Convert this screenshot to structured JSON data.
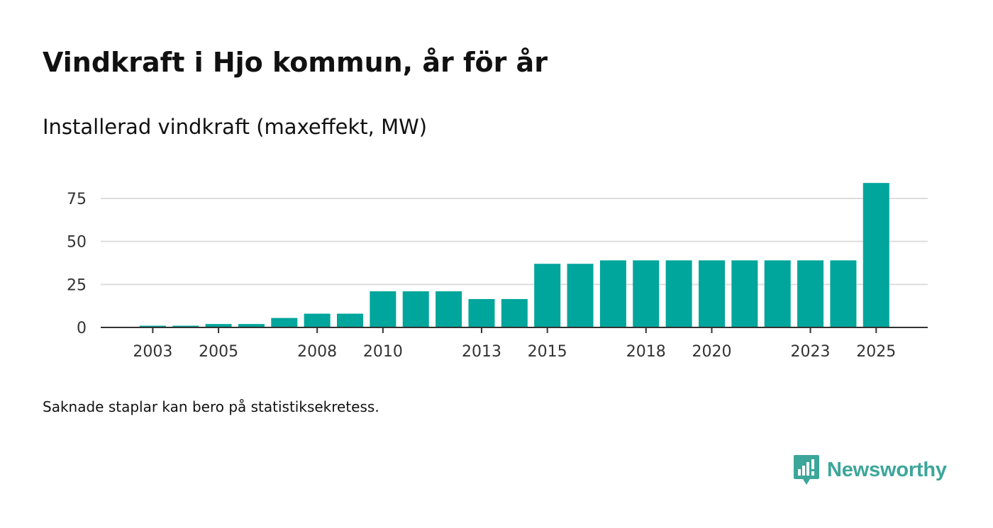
{
  "header": {
    "title": "Vindkraft i Hjo kommun, år för år",
    "subtitle": "Installerad vindkraft (maxeffekt, MW)"
  },
  "footer": {
    "note": "Saknade staplar kan bero på statistiksekretess.",
    "brand": "Newsworthy"
  },
  "colors": {
    "bar": "#00a59b",
    "grid": "#dddddd",
    "axis": "#333333",
    "brand": "#3ca69a"
  },
  "chart_data": {
    "type": "bar",
    "title": "Vindkraft i Hjo kommun, år för år",
    "subtitle": "Installerad vindkraft (maxeffekt, MW)",
    "xlabel": "",
    "ylabel": "",
    "ylim": [
      0,
      85
    ],
    "yticks": [
      0,
      25,
      50,
      75
    ],
    "xtick_labels": [
      2003,
      2005,
      2008,
      2010,
      2013,
      2015,
      2018,
      2020,
      2023,
      2025
    ],
    "categories": [
      2002,
      2003,
      2004,
      2005,
      2006,
      2007,
      2008,
      2009,
      2010,
      2011,
      2012,
      2013,
      2014,
      2015,
      2016,
      2017,
      2018,
      2019,
      2020,
      2021,
      2022,
      2023,
      2024,
      2025
    ],
    "values": [
      null,
      1,
      1,
      2,
      2,
      5.5,
      8,
      8,
      21,
      21,
      21,
      16.5,
      16.5,
      37,
      37,
      39,
      39,
      39,
      39,
      39,
      39,
      39,
      39,
      84
    ],
    "grid": true,
    "legend": "none"
  }
}
